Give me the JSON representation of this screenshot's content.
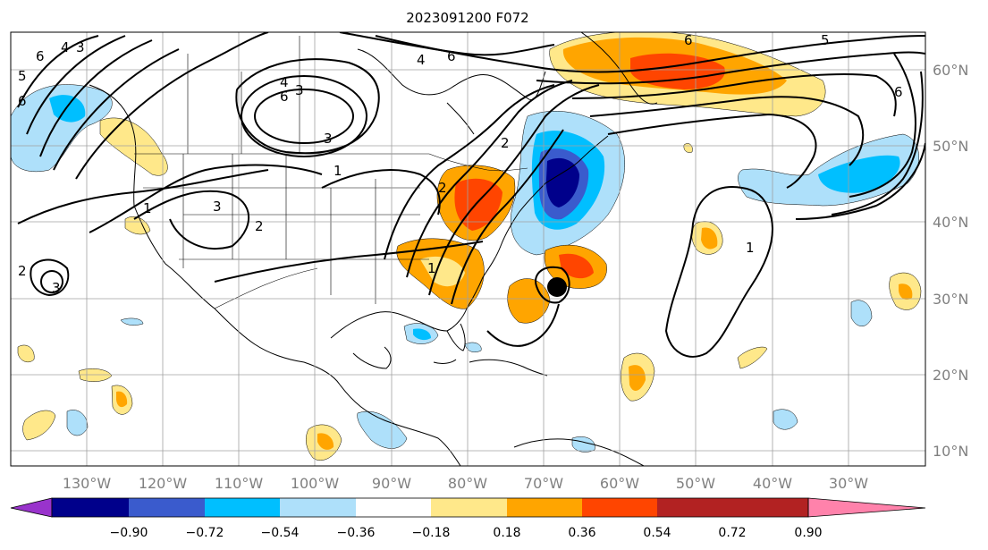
{
  "title": "2023091200 F072",
  "map": {
    "lon_ticks": [
      "130°W",
      "120°W",
      "110°W",
      "100°W",
      "90°W",
      "80°W",
      "70°W",
      "60°W",
      "50°W",
      "40°W",
      "30°W"
    ],
    "lat_ticks": [
      "60°N",
      "50°N",
      "40°N",
      "30°N",
      "20°N",
      "10°N"
    ],
    "contour_labels": [
      "6",
      "4",
      "3",
      "4",
      "3",
      "6",
      "5",
      "6",
      "6",
      "6",
      "5",
      "2",
      "3",
      "2",
      "2",
      "3",
      "1",
      "1",
      "4",
      "2",
      "1",
      "3",
      "1",
      "6"
    ],
    "storm_marker": "tropical-cyclone-position",
    "grid": true
  },
  "colorbar": {
    "tick_labels": [
      "−0.90",
      "−0.72",
      "−0.54",
      "−0.36",
      "−0.18",
      "0.18",
      "0.36",
      "0.54",
      "0.72",
      "0.90"
    ],
    "colors": [
      "#9933cc",
      "#00008b",
      "#3a5bcd",
      "#00bfff",
      "#aee0fa",
      "#ffffff",
      "#ffe88a",
      "#ffa500",
      "#ff4500",
      "#b22222",
      "#ff82ab"
    ],
    "extend": "both"
  }
}
